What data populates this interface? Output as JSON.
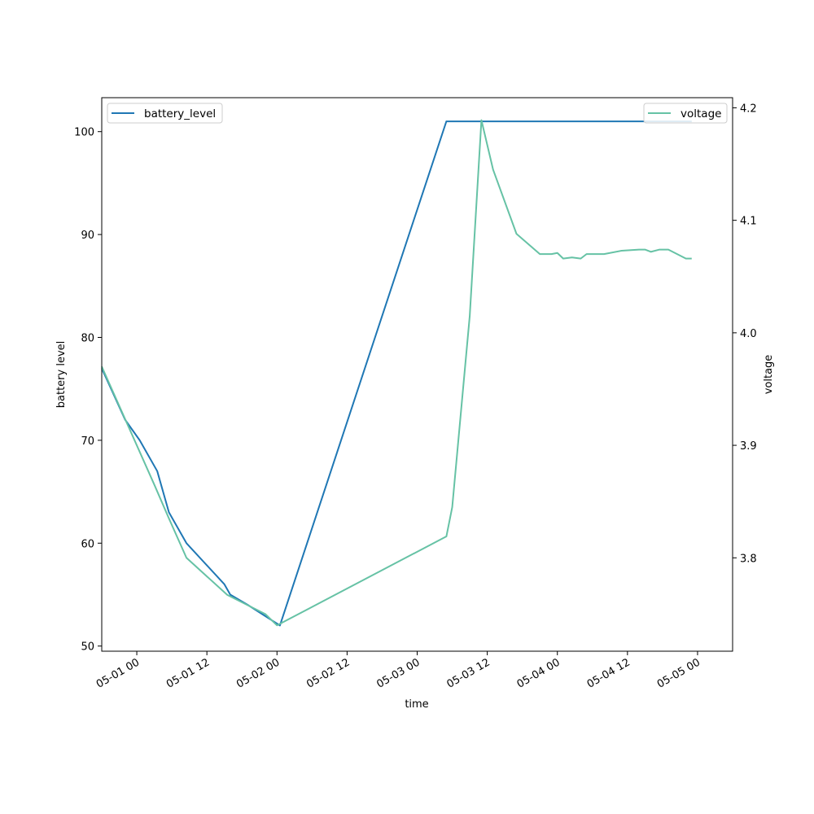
{
  "chart_data": {
    "type": "line",
    "xlabel": "time",
    "ylabel_left": "battery level",
    "ylabel_right": "voltage",
    "xlim": [
      "2026-04-30 18:00",
      "2026-05-05 06:00"
    ],
    "ylim_left": [
      49.5,
      103.3
    ],
    "ylim_right": [
      3.717,
      4.209
    ],
    "x_ticks": [
      {
        "time": "2026-05-01 00:00",
        "label": "05-01 00"
      },
      {
        "time": "2026-05-01 12:00",
        "label": "05-01 12"
      },
      {
        "time": "2026-05-02 00:00",
        "label": "05-02 00"
      },
      {
        "time": "2026-05-02 12:00",
        "label": "05-02 12"
      },
      {
        "time": "2026-05-03 00:00",
        "label": "05-03 00"
      },
      {
        "time": "2026-05-03 12:00",
        "label": "05-03 12"
      },
      {
        "time": "2026-05-04 00:00",
        "label": "05-04 00"
      },
      {
        "time": "2026-05-04 12:00",
        "label": "05-04 12"
      },
      {
        "time": "2026-05-05 00:00",
        "label": "05-05 00"
      }
    ],
    "y_ticks_left": [
      {
        "value": 50,
        "label": "50"
      },
      {
        "value": 60,
        "label": "60"
      },
      {
        "value": 70,
        "label": "70"
      },
      {
        "value": 80,
        "label": "80"
      },
      {
        "value": 90,
        "label": "90"
      },
      {
        "value": 100,
        "label": "100"
      }
    ],
    "y_ticks_right": [
      {
        "value": 3.8,
        "label": "3.8"
      },
      {
        "value": 3.9,
        "label": "3.9"
      },
      {
        "value": 4.0,
        "label": "4.0"
      },
      {
        "value": 4.1,
        "label": "4.1"
      },
      {
        "value": 4.2,
        "label": "4.2"
      }
    ],
    "grid": false,
    "series": [
      {
        "name": "battery_level",
        "axis": "left",
        "color": "#1f77b4",
        "legend_position": "upper-left",
        "points": [
          [
            "2026-04-30 18:00",
            77
          ],
          [
            "2026-04-30 22:00",
            72
          ],
          [
            "2026-05-01 00:30",
            70
          ],
          [
            "2026-05-01 03:30",
            67
          ],
          [
            "2026-05-01 05:30",
            63
          ],
          [
            "2026-05-01 08:30",
            60
          ],
          [
            "2026-05-01 15:00",
            56
          ],
          [
            "2026-05-01 16:00",
            55
          ],
          [
            "2026-05-01 19:00",
            54
          ],
          [
            "2026-05-02 00:30",
            52
          ],
          [
            "2026-05-03 05:00",
            101
          ],
          [
            "2026-05-04 23:00",
            101
          ]
        ]
      },
      {
        "name": "voltage",
        "axis": "right",
        "color": "#66c2a5",
        "legend_position": "upper-right",
        "points": [
          [
            "2026-04-30 18:00",
            3.97
          ],
          [
            "2026-05-01 03:00",
            3.865
          ],
          [
            "2026-05-01 05:30",
            3.835
          ],
          [
            "2026-05-01 08:30",
            3.8
          ],
          [
            "2026-05-01 15:30",
            3.767
          ],
          [
            "2026-05-01 22:00",
            3.75
          ],
          [
            "2026-05-02 00:00",
            3.74
          ],
          [
            "2026-05-03 05:00",
            3.819
          ],
          [
            "2026-05-03 06:00",
            3.845
          ],
          [
            "2026-05-03 09:00",
            4.015
          ],
          [
            "2026-05-03 11:00",
            4.189
          ],
          [
            "2026-05-03 13:00",
            4.145
          ],
          [
            "2026-05-03 17:00",
            4.088
          ],
          [
            "2026-05-03 21:00",
            4.07
          ],
          [
            "2026-05-03 23:00",
            4.07
          ],
          [
            "2026-05-04 00:00",
            4.071
          ],
          [
            "2026-05-04 01:00",
            4.066
          ],
          [
            "2026-05-04 02:30",
            4.067
          ],
          [
            "2026-05-04 04:00",
            4.066
          ],
          [
            "2026-05-04 05:00",
            4.07
          ],
          [
            "2026-05-04 08:00",
            4.07
          ],
          [
            "2026-05-04 11:00",
            4.073
          ],
          [
            "2026-05-04 14:00",
            4.074
          ],
          [
            "2026-05-04 15:00",
            4.074
          ],
          [
            "2026-05-04 16:00",
            4.072
          ],
          [
            "2026-05-04 17:30",
            4.074
          ],
          [
            "2026-05-04 19:00",
            4.074
          ],
          [
            "2026-05-04 22:00",
            4.066
          ],
          [
            "2026-05-04 23:00",
            4.066
          ]
        ]
      }
    ]
  }
}
